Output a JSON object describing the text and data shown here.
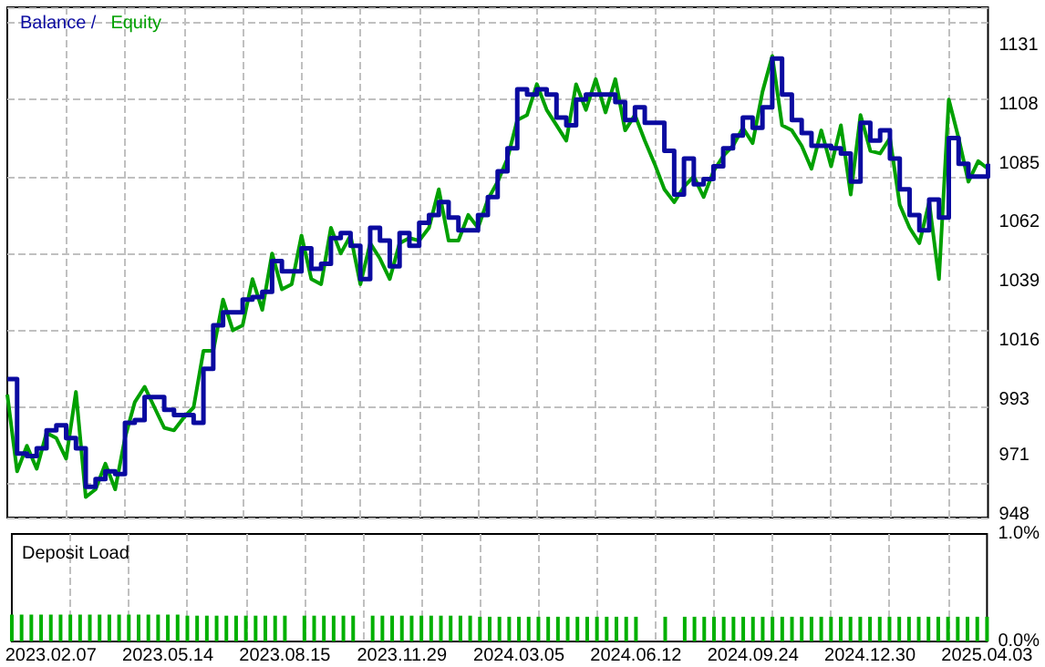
{
  "chart_data": [
    {
      "type": "line",
      "categories": [
        null,
        null,
        null,
        null,
        "2023.02.07",
        null,
        null,
        null,
        null,
        null,
        null,
        null,
        null,
        null,
        null,
        null,
        "2023.05.14",
        null,
        null,
        null,
        null,
        null,
        null,
        null,
        null,
        null,
        null,
        null,
        "2023.08.15",
        null,
        null,
        null,
        null,
        null,
        null,
        null,
        null,
        null,
        null,
        null,
        "2023.11.29",
        null,
        null,
        null,
        null,
        null,
        null,
        null,
        null,
        null,
        null,
        null,
        "2024.03.05",
        null,
        null,
        null,
        null,
        null,
        null,
        null,
        null,
        null,
        null,
        null,
        "2024.06.12",
        null,
        null,
        null,
        null,
        null,
        null,
        null,
        null,
        null,
        null,
        null,
        "2024.09.24",
        null,
        null,
        null,
        null,
        null,
        null,
        null,
        null,
        null,
        null,
        null,
        "2024.12.30",
        null,
        null,
        null,
        null,
        null,
        null,
        null,
        null,
        null,
        null,
        null,
        "2025.04.03"
      ],
      "series": [
        {
          "name": "Equity",
          "color": "#00a000",
          "values": [
            995,
            965,
            975,
            966,
            980,
            978,
            970,
            996,
            955,
            958,
            968,
            958,
            978,
            992,
            998,
            990,
            982,
            981,
            986,
            990,
            1012,
            1012,
            1032,
            1020,
            1022,
            1040,
            1028,
            1050,
            1036,
            1038,
            1057,
            1040,
            1038,
            1060,
            1050,
            1057,
            1038,
            1054,
            1048,
            1040,
            1054,
            1056,
            1055,
            1060,
            1075,
            1055,
            1055,
            1065,
            1060,
            1071,
            1078,
            1087,
            1102,
            1104,
            1116,
            1106,
            1100,
            1094,
            1116,
            1106,
            1118,
            1105,
            1118,
            1098,
            1104,
            1094,
            1085,
            1075,
            1070,
            1076,
            1080,
            1072,
            1082,
            1088,
            1092,
            1099,
            1093,
            1113,
            1127,
            1100,
            1098,
            1092,
            1083,
            1098,
            1084,
            1100,
            1073,
            1104,
            1090,
            1089,
            1095,
            1069,
            1060,
            1054,
            1070,
            1040,
            1110,
            1095,
            1078,
            1086,
            1083
          ]
        },
        {
          "name": "Balance /",
          "type": "step",
          "color": "#0a0aa0",
          "values": [
            1001,
            972,
            971,
            974,
            981,
            983,
            978,
            974,
            959,
            962,
            965,
            964,
            984,
            985,
            994,
            994,
            989,
            987,
            987,
            984,
            1005,
            1022,
            1027,
            1027,
            1032,
            1033,
            1035,
            1047,
            1043,
            1043,
            1052,
            1044,
            1046,
            1056,
            1058,
            1053,
            1040,
            1060,
            1055,
            1045,
            1058,
            1053,
            1062,
            1065,
            1070,
            1064,
            1059,
            1059,
            1065,
            1072,
            1082,
            1091,
            1114,
            1112,
            1114,
            1112,
            1103,
            1100,
            1110,
            1112,
            1112,
            1112,
            1109,
            1102,
            1107,
            1101,
            1101,
            1090,
            1073,
            1087,
            1077,
            1079,
            1084,
            1091,
            1096,
            1103,
            1099,
            1107,
            1126,
            1112,
            1102,
            1097,
            1092,
            1092,
            1091,
            1089,
            1078,
            1101,
            1094,
            1098,
            1087,
            1075,
            1065,
            1059,
            1071,
            1064,
            1095,
            1085,
            1080,
            1080,
            1085
          ]
        }
      ],
      "ylim": [
        947,
        1146
      ],
      "yticks": [
        948,
        971,
        993,
        1016,
        1039,
        1062,
        1085,
        1108,
        1131
      ],
      "grid": true,
      "legend": "top left",
      "tick_labels": "y"
    },
    {
      "type": "bar",
      "title": "Deposit Load",
      "categories": [
        null,
        null,
        null,
        null,
        "2023.02.07",
        null,
        null,
        null,
        null,
        null,
        null,
        null,
        null,
        null,
        null,
        null,
        "2023.05.14",
        null,
        null,
        null,
        null,
        null,
        null,
        null,
        null,
        null,
        null,
        null,
        "2023.08.15",
        null,
        null,
        null,
        null,
        null,
        null,
        null,
        null,
        null,
        null,
        null,
        "2023.11.29",
        null,
        null,
        null,
        null,
        null,
        null,
        null,
        null,
        null,
        null,
        null,
        "2024.03.05",
        null,
        null,
        null,
        null,
        null,
        null,
        null,
        null,
        null,
        null,
        null,
        "2024.06.12",
        null,
        null,
        null,
        null,
        null,
        null,
        null,
        null,
        null,
        null,
        null,
        "2024.09.24",
        null,
        null,
        null,
        null,
        null,
        null,
        null,
        null,
        null,
        null,
        null,
        "2024.12.30",
        null,
        null,
        null,
        null,
        null,
        null,
        null,
        null,
        null,
        null,
        null,
        "2025.04.03"
      ],
      "color": "#00b000",
      "values": [
        0.25,
        0.25,
        0.25,
        0.25,
        0.25,
        0.25,
        0.25,
        0.25,
        0.25,
        0.25,
        0.25,
        0.25,
        0.25,
        0.25,
        0.25,
        0.25,
        0.25,
        0.25,
        0.24,
        0.24,
        0.24,
        0.24,
        0.24,
        0.24,
        0.24,
        0.24,
        0.24,
        0.24,
        0.24,
        null,
        0.24,
        0.24,
        0.24,
        0.24,
        0.24,
        0.24,
        null,
        0.24,
        0.24,
        0.24,
        0.24,
        0.24,
        0.24,
        0.24,
        0.24,
        0.24,
        0.24,
        0.24,
        0.23,
        0.23,
        0.23,
        0.23,
        0.23,
        0.23,
        0.23,
        0.23,
        0.23,
        0.23,
        0.23,
        0.23,
        0.23,
        0.23,
        0.23,
        0.23,
        0.23,
        null,
        null,
        0.23,
        null,
        0.23,
        0.23,
        0.23,
        0.23,
        0.23,
        0.23,
        0.23,
        0.23,
        0.23,
        0.23,
        0.23,
        0.23,
        0.23,
        0.23,
        0.23,
        0.23,
        0.23,
        0.23,
        0.23,
        0.23,
        0.23,
        0.23,
        0.23,
        0.23,
        0.23,
        0.23,
        0.23,
        0.23,
        0.23,
        0.23,
        0.23,
        0.23
      ],
      "ylim": [
        0,
        1
      ],
      "yticks": [
        {
          "value": 0,
          "label": "0.0%"
        },
        {
          "value": 1,
          "label": "1.0%"
        }
      ],
      "grid": "x"
    }
  ]
}
